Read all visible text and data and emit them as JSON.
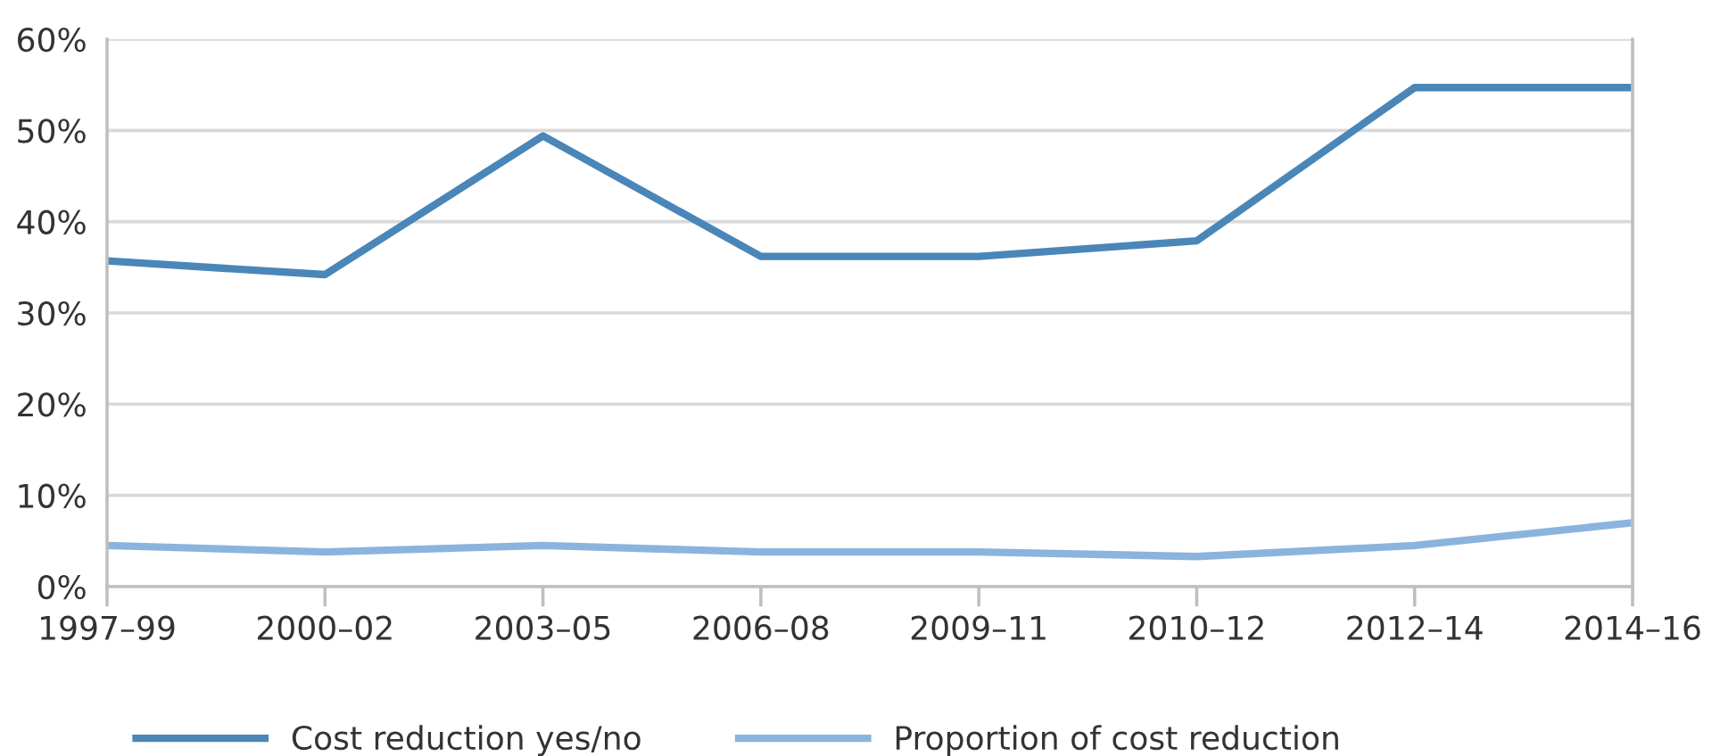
{
  "chart_data": {
    "type": "line",
    "categories": [
      "1997–99",
      "2000–02",
      "2003–05",
      "2006–08",
      "2009–11",
      "2010–12",
      "2012–14",
      "2014–16"
    ],
    "series": [
      {
        "name": "Cost reduction yes/no",
        "color": "#4a86b8",
        "values": [
          35.7,
          34.2,
          49.4,
          36.2,
          36.2,
          37.9,
          54.7,
          54.7
        ]
      },
      {
        "name": "Proportion of cost reduction",
        "color": "#8ab4dd",
        "values": [
          4.5,
          3.8,
          4.5,
          3.8,
          3.8,
          3.3,
          4.5,
          7.0
        ]
      }
    ],
    "ylim": [
      0,
      60
    ],
    "yticks": [
      {
        "value": 0,
        "label": "0%"
      },
      {
        "value": 10,
        "label": "10%"
      },
      {
        "value": 20,
        "label": "20%"
      },
      {
        "value": 30,
        "label": "30%"
      },
      {
        "value": 40,
        "label": "40%"
      },
      {
        "value": 50,
        "label": "50%"
      },
      {
        "value": 60,
        "label": "60%"
      }
    ],
    "grid": "y",
    "legend": "bottom",
    "marker": "none",
    "line_style": "solid"
  }
}
